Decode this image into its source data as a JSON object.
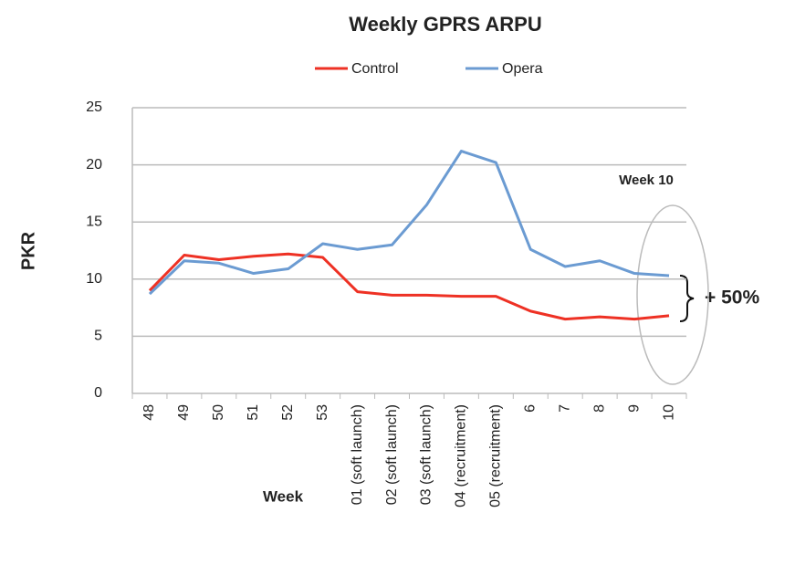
{
  "chart_data": {
    "type": "line",
    "title": "Weekly GPRS ARPU",
    "x_label": "Week",
    "y_label": "PKR",
    "categories": [
      "48",
      "49",
      "50",
      "51",
      "52",
      "53",
      "01 (soft launch)",
      "02 (soft launch)",
      "03 (soft launch)",
      "04 (recruitment)",
      "05 (recruitment)",
      "6",
      "7",
      "8",
      "9",
      "10"
    ],
    "series": [
      {
        "name": "Control",
        "color": "#ee3124",
        "values": [
          9.0,
          12.1,
          11.7,
          12.0,
          12.2,
          11.9,
          8.9,
          8.6,
          8.6,
          8.5,
          8.5,
          7.2,
          6.5,
          6.7,
          6.5,
          6.8
        ]
      },
      {
        "name": "Opera",
        "color": "#6b9bd2",
        "values": [
          8.7,
          11.6,
          11.4,
          10.5,
          10.9,
          13.1,
          12.6,
          13.0,
          16.5,
          21.2,
          20.2,
          12.6,
          11.1,
          11.6,
          10.5,
          10.3
        ]
      }
    ],
    "ylim": [
      0,
      25
    ],
    "yticks": [
      0,
      5,
      10,
      15,
      20,
      25
    ],
    "grid": true,
    "legend": "top",
    "annotations": [
      "Week 10",
      "+ 50%"
    ]
  }
}
